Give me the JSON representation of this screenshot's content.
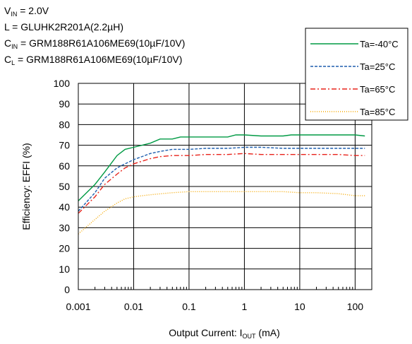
{
  "conditions": {
    "vin": {
      "sym": "V",
      "sub": "IN",
      "rest": " = 2.0V"
    },
    "inductor": {
      "text": "L = GLUHK2R201A(2.2µH)"
    },
    "cin": {
      "sym": "C",
      "sub": "IN",
      "rest": " = GRM188R61A106ME69(10µF/10V)"
    },
    "cl": {
      "sym": "C",
      "sub": "L",
      "rest": " = GRM188R61A106ME69(10µF/10V)"
    }
  },
  "chart_data": {
    "type": "line",
    "x_scale": "log",
    "xlim": [
      0.001,
      200
    ],
    "ylim": [
      0,
      100
    ],
    "x_ticks": [
      0.001,
      0.01,
      0.1,
      1,
      10,
      100
    ],
    "x_tick_labels": [
      "0.001",
      "0.01",
      "0.1",
      "1",
      "10",
      "100"
    ],
    "y_ticks": [
      0,
      10,
      20,
      30,
      40,
      50,
      60,
      70,
      80,
      90,
      100
    ],
    "y_tick_labels": [
      "0",
      "10",
      "20",
      "30",
      "40",
      "50",
      "60",
      "70",
      "80",
      "90",
      "100"
    ],
    "xlabel": {
      "main": "Output Current: I",
      "sub": "OUT",
      "unit": " (mA)"
    },
    "ylabel": "Efficiency: EFFI (%)",
    "grid": true,
    "legend_placement": "top-right",
    "series": [
      {
        "name": "Ta=-40°C",
        "color": "#009a44",
        "dash": "solid",
        "x": [
          0.001,
          0.002,
          0.003,
          0.005,
          0.007,
          0.01,
          0.02,
          0.03,
          0.05,
          0.07,
          0.1,
          0.2,
          0.5,
          0.7,
          1,
          2,
          5,
          7,
          10,
          20,
          50,
          100,
          150
        ],
        "y": [
          43,
          51,
          57,
          65,
          68,
          69,
          71,
          73,
          73,
          74,
          74,
          74,
          74,
          75,
          75,
          74.5,
          74.5,
          75,
          75,
          75,
          75,
          75,
          74.5
        ]
      },
      {
        "name": "Ta=25°C",
        "color": "#1f5fae",
        "dash": "dashed",
        "x": [
          0.001,
          0.002,
          0.003,
          0.005,
          0.007,
          0.01,
          0.02,
          0.03,
          0.05,
          0.1,
          0.2,
          0.5,
          1,
          2,
          5,
          10,
          20,
          50,
          100,
          150
        ],
        "y": [
          38,
          47,
          54,
          59,
          61,
          63,
          66,
          67,
          68,
          68,
          68.5,
          68.5,
          69,
          69,
          68.5,
          68.5,
          68.5,
          68.5,
          68.5,
          68.5
        ]
      },
      {
        "name": "Ta=65°C",
        "color": "#e8231b",
        "dash": "dashdot",
        "x": [
          0.001,
          0.002,
          0.003,
          0.005,
          0.007,
          0.01,
          0.02,
          0.03,
          0.05,
          0.1,
          0.2,
          0.5,
          1,
          2,
          5,
          10,
          20,
          50,
          100,
          150
        ],
        "y": [
          37,
          45,
          51,
          56,
          59,
          61,
          63.5,
          64.5,
          65,
          65,
          65.5,
          65.5,
          66,
          65.5,
          65.5,
          65.5,
          65.5,
          65.5,
          65,
          65
        ]
      },
      {
        "name": "Ta=85°C",
        "color": "#f5a800",
        "dash": "dotted",
        "x": [
          0.001,
          0.002,
          0.003,
          0.005,
          0.007,
          0.01,
          0.02,
          0.05,
          0.1,
          0.2,
          0.5,
          1,
          2,
          5,
          10,
          20,
          50,
          100,
          150
        ],
        "y": [
          27,
          34,
          38,
          42,
          44,
          45,
          46,
          47,
          47.5,
          47.5,
          47.5,
          47.5,
          47.5,
          47.5,
          47,
          47,
          46.5,
          45.5,
          45.5
        ]
      }
    ]
  }
}
